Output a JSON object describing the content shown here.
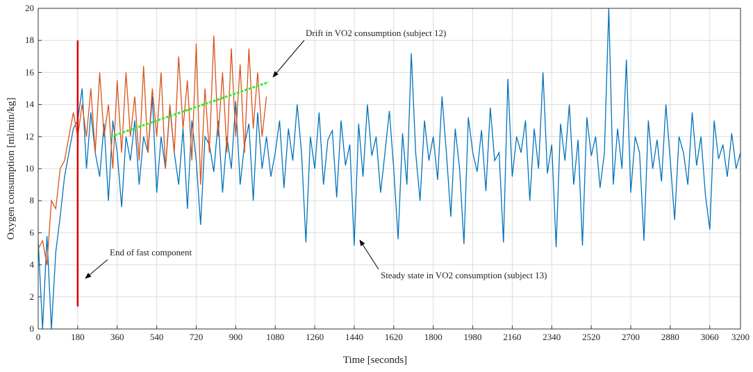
{
  "chart_data": {
    "type": "line",
    "xlabel": "Time [seconds]",
    "ylabel": "Oxygen consumption [ml/min/kg]",
    "xlim": [
      0,
      3200
    ],
    "ylim": [
      0,
      20
    ],
    "xticks": [
      0,
      180,
      360,
      540,
      720,
      900,
      1080,
      1260,
      1440,
      1620,
      1800,
      1980,
      2160,
      2340,
      2520,
      2700,
      2880,
      3060,
      3200
    ],
    "yticks": [
      0,
      2,
      4,
      6,
      8,
      10,
      12,
      14,
      16,
      18,
      20
    ],
    "grid": true,
    "x": [
      0,
      20,
      40,
      60,
      80,
      100,
      120,
      140,
      160,
      180,
      200,
      220,
      240,
      260,
      280,
      300,
      320,
      340,
      360,
      380,
      400,
      420,
      440,
      460,
      480,
      500,
      520,
      540,
      560,
      580,
      600,
      620,
      640,
      660,
      680,
      700,
      720,
      740,
      760,
      780,
      800,
      820,
      840,
      860,
      880,
      900,
      920,
      940,
      960,
      980,
      1000,
      1020,
      1040,
      1060,
      1080,
      1100,
      1120,
      1140,
      1160,
      1180,
      1200,
      1220,
      1240,
      1260,
      1280,
      1300,
      1320,
      1340,
      1360,
      1380,
      1400,
      1420,
      1440,
      1460,
      1480,
      1500,
      1520,
      1540,
      1560,
      1580,
      1600,
      1620,
      1640,
      1660,
      1680,
      1700,
      1720,
      1740,
      1760,
      1780,
      1800,
      1820,
      1840,
      1860,
      1880,
      1900,
      1920,
      1940,
      1960,
      1980,
      2000,
      2020,
      2040,
      2060,
      2080,
      2100,
      2120,
      2140,
      2160,
      2180,
      2200,
      2220,
      2240,
      2260,
      2280,
      2300,
      2320,
      2340,
      2360,
      2380,
      2400,
      2420,
      2440,
      2460,
      2480,
      2500,
      2520,
      2540,
      2560,
      2580,
      2600,
      2620,
      2640,
      2660,
      2680,
      2700,
      2720,
      2740,
      2760,
      2780,
      2800,
      2820,
      2840,
      2860,
      2880,
      2900,
      2920,
      2940,
      2960,
      2980,
      3000,
      3020,
      3040,
      3060,
      3080,
      3100,
      3120,
      3140,
      3160,
      3180,
      3200
    ],
    "series": [
      {
        "color": "#0072bd",
        "values": [
          5.5,
          0,
          5.8,
          0,
          4.8,
          7,
          9.5,
          11,
          12.5,
          13,
          15,
          10,
          13.5,
          11,
          9.5,
          12.8,
          8,
          13,
          11,
          7.6,
          12,
          10.5,
          13,
          9,
          12,
          11,
          14.5,
          8.5,
          12,
          10,
          13.8,
          11,
          9,
          12.5,
          7.5,
          13,
          10.5,
          6.5,
          12,
          11.5,
          9.8,
          13,
          8.5,
          12,
          10,
          14.2,
          9,
          11.5,
          12.8,
          8,
          13.5,
          10,
          12,
          9.5,
          11,
          13,
          8.8,
          12.5,
          10.5,
          14,
          11,
          5.4,
          12,
          10,
          13.5,
          9,
          11.8,
          12.4,
          8.2,
          13,
          10.2,
          11.5,
          5.2,
          12.8,
          9.5,
          14,
          10.8,
          12,
          8.5,
          11,
          13.6,
          10,
          5.6,
          12.2,
          9,
          17.2,
          11,
          8,
          13,
          10.5,
          12,
          9.3,
          14.5,
          11,
          7,
          12.5,
          10,
          5.3,
          13.2,
          11,
          9.8,
          12.4,
          8.6,
          13.8,
          10.5,
          11,
          5.4,
          15.6,
          9.5,
          12,
          11,
          13,
          8,
          12.5,
          10,
          16,
          9.7,
          11.5,
          5.1,
          12.8,
          10.5,
          14,
          9,
          11.8,
          5.2,
          13.2,
          10.8,
          12,
          8.8,
          11,
          20,
          9,
          12.5,
          10,
          16.8,
          8.5,
          12,
          11,
          5.5,
          13,
          10,
          11.8,
          9.2,
          14,
          10.5,
          6.8,
          12,
          11,
          9,
          13.5,
          10.2,
          12,
          8.4,
          6.2,
          13,
          10.6,
          11.5,
          9.5,
          12.2,
          10,
          11
        ]
      },
      {
        "color": "#d95319",
        "values": [
          5,
          5.5,
          4,
          8,
          7.5,
          10,
          10.5,
          12,
          13.5,
          12,
          14,
          12,
          15,
          11,
          16,
          12,
          14,
          10,
          15.5,
          11,
          16,
          12,
          14.5,
          10.5,
          16.4,
          11,
          15,
          12,
          16,
          10,
          14,
          11,
          17,
          12.5,
          15.5,
          10.5,
          17.8,
          9,
          15,
          11,
          18.3,
          12,
          16,
          11,
          17.5,
          12,
          16.5,
          11,
          17.5,
          12.5,
          16,
          12,
          14.5,
          null,
          null,
          null,
          null,
          null,
          null,
          null,
          null,
          null,
          null,
          null,
          null,
          null,
          null,
          null,
          null,
          null,
          null,
          null,
          null,
          null,
          null,
          null,
          null,
          null,
          null,
          null,
          null,
          null,
          null,
          null,
          null,
          null,
          null,
          null,
          null,
          null,
          null,
          null,
          null,
          null,
          null,
          null,
          null,
          null,
          null,
          null,
          null,
          null,
          null,
          null,
          null,
          null,
          null,
          null,
          null,
          null,
          null,
          null,
          null,
          null,
          null,
          null,
          null,
          null,
          null,
          null,
          null,
          null,
          null,
          null,
          null,
          null,
          null,
          null,
          null,
          null,
          null,
          null,
          null,
          null,
          null,
          null,
          null,
          null,
          null,
          null,
          null,
          null,
          null,
          null,
          null,
          null,
          null,
          null,
          null,
          null,
          null,
          null,
          null,
          null,
          null,
          null,
          null,
          null,
          null,
          null,
          null
        ]
      }
    ],
    "vlines": [
      {
        "x": 180,
        "y": [
          1.4,
          18
        ],
        "color": "#e00000"
      }
    ],
    "trend": {
      "x": [
        330,
        1050
      ],
      "y": [
        12,
        15.4
      ],
      "color": "#33ee33"
    },
    "annotations": [
      {
        "text": "Drift in VO2 consumption (subject 12)"
      },
      {
        "text": "End of fast component"
      },
      {
        "text": "Steady state in VO2 consumption (subject 13)"
      }
    ]
  }
}
